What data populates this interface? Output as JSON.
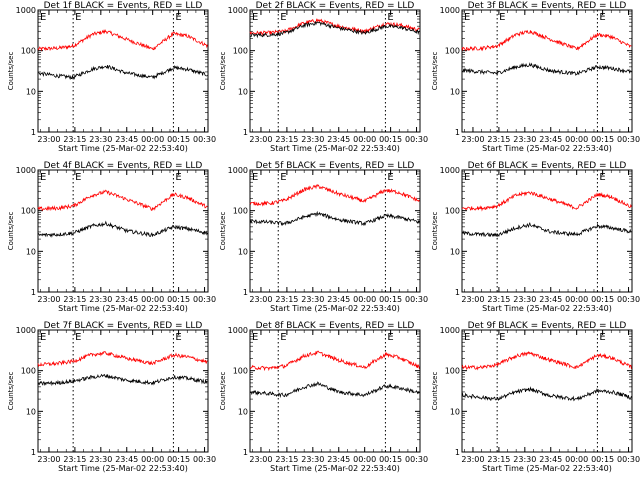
{
  "chart_data": [
    {
      "type": "line",
      "title": "Det 1f BLACK = Events, RED = LLD",
      "xlabel": "Start Time (25-Mar-02 22:53:40)",
      "ylabel": "Counts/sec",
      "yscale": "log",
      "ylim": [
        1,
        1000
      ],
      "x_ticks": [
        "23:00",
        "23:15",
        "23:30",
        "23:45",
        "00:00",
        "00:15",
        "00:30"
      ],
      "y_ticks": [
        "1",
        "10",
        "100",
        "1000"
      ],
      "xlim": [
        "22:53:40",
        "00:32:00"
      ],
      "markers": [
        "23:14",
        "00:12"
      ],
      "marker_label": "E",
      "series": [
        {
          "color": "#ff0000",
          "times": [
            "22:53:40",
            "23:05",
            "23:14",
            "23:25",
            "23:33",
            "23:45",
            "00:00",
            "00:12",
            "00:20",
            "00:32"
          ],
          "values": [
            110,
            115,
            130,
            250,
            300,
            190,
            110,
            260,
            230,
            130
          ]
        },
        {
          "color": "#000000",
          "times": [
            "22:53:40",
            "23:05",
            "23:14",
            "23:25",
            "23:33",
            "23:45",
            "00:00",
            "00:12",
            "00:20",
            "00:32"
          ],
          "values": [
            28,
            24,
            22,
            35,
            42,
            28,
            22,
            38,
            35,
            25
          ]
        }
      ]
    },
    {
      "type": "line",
      "title": "Det 2f BLACK = Events, RED = LLD",
      "xlabel": "Start Time (25-Mar-02 22:53:40)",
      "ylabel": "Counts/sec",
      "yscale": "log",
      "ylim": [
        1,
        1000
      ],
      "x_ticks": [
        "23:00",
        "23:15",
        "23:30",
        "23:45",
        "00:00",
        "00:15",
        "00:30"
      ],
      "y_ticks": [
        "1",
        "10",
        "100",
        "1000"
      ],
      "xlim": [
        "22:53:40",
        "00:32:00"
      ],
      "markers": [
        "23:10",
        "00:12"
      ],
      "marker_label": "E",
      "series": [
        {
          "color": "#ff0000",
          "times": [
            "22:53:40",
            "23:05",
            "23:14",
            "23:25",
            "23:33",
            "23:45",
            "00:00",
            "00:12",
            "00:20",
            "00:32"
          ],
          "values": [
            270,
            275,
            300,
            480,
            560,
            400,
            300,
            460,
            430,
            320
          ]
        },
        {
          "color": "#000000",
          "times": [
            "22:53:40",
            "23:05",
            "23:14",
            "23:25",
            "23:33",
            "23:45",
            "00:00",
            "00:12",
            "00:20",
            "00:32"
          ],
          "values": [
            240,
            245,
            270,
            420,
            490,
            360,
            270,
            400,
            380,
            280
          ]
        }
      ]
    },
    {
      "type": "line",
      "title": "Det 3f BLACK = Events, RED = LLD",
      "xlabel": "Start Time (25-Mar-02 22:53:40)",
      "ylabel": "Counts/sec",
      "yscale": "log",
      "ylim": [
        1,
        1000
      ],
      "x_ticks": [
        "23:00",
        "23:15",
        "23:30",
        "23:45",
        "00:00",
        "00:15",
        "00:30"
      ],
      "y_ticks": [
        "1",
        "10",
        "100",
        "1000"
      ],
      "xlim": [
        "22:53:40",
        "00:32:00"
      ],
      "markers": [
        "23:14",
        "00:12"
      ],
      "marker_label": "E",
      "series": [
        {
          "color": "#ff0000",
          "times": [
            "22:53:40",
            "23:05",
            "23:14",
            "23:25",
            "23:33",
            "23:45",
            "00:00",
            "00:12",
            "00:20",
            "00:32"
          ],
          "values": [
            110,
            115,
            130,
            250,
            300,
            190,
            110,
            250,
            220,
            120
          ]
        },
        {
          "color": "#000000",
          "times": [
            "22:53:40",
            "23:05",
            "23:14",
            "23:25",
            "23:33",
            "23:45",
            "00:00",
            "00:12",
            "00:20",
            "00:32"
          ],
          "values": [
            33,
            30,
            28,
            40,
            45,
            32,
            27,
            40,
            37,
            30
          ]
        }
      ]
    },
    {
      "type": "line",
      "title": "Det 4f BLACK = Events, RED = LLD",
      "xlabel": "Start Time (25-Mar-02 22:53:40)",
      "ylabel": "Counts/sec",
      "yscale": "log",
      "ylim": [
        1,
        1000
      ],
      "x_ticks": [
        "23:00",
        "23:15",
        "23:30",
        "23:45",
        "00:00",
        "00:15",
        "00:30"
      ],
      "y_ticks": [
        "1",
        "10",
        "100",
        "1000"
      ],
      "xlim": [
        "22:53:40",
        "00:32:00"
      ],
      "markers": [
        "23:14",
        "00:12"
      ],
      "marker_label": "E",
      "series": [
        {
          "color": "#ff0000",
          "times": [
            "22:53:40",
            "23:05",
            "23:14",
            "23:25",
            "23:33",
            "23:45",
            "00:00",
            "00:12",
            "00:20",
            "00:32"
          ],
          "values": [
            110,
            115,
            130,
            240,
            290,
            190,
            110,
            250,
            210,
            120
          ]
        },
        {
          "color": "#000000",
          "times": [
            "22:53:40",
            "23:05",
            "23:14",
            "23:25",
            "23:33",
            "23:45",
            "00:00",
            "00:12",
            "00:20",
            "00:32"
          ],
          "values": [
            25,
            26,
            28,
            42,
            48,
            32,
            25,
            40,
            36,
            28
          ]
        }
      ]
    },
    {
      "type": "line",
      "title": "Det 5f BLACK = Events, RED = LLD",
      "xlabel": "Start Time (25-Mar-02 22:53:40)",
      "ylabel": "Counts/sec",
      "yscale": "log",
      "ylim": [
        1,
        1000
      ],
      "x_ticks": [
        "23:00",
        "23:15",
        "23:30",
        "23:45",
        "00:00",
        "00:15",
        "00:30"
      ],
      "y_ticks": [
        "1",
        "10",
        "100",
        "1000"
      ],
      "xlim": [
        "22:53:40",
        "00:32:00"
      ],
      "markers": [
        "23:10",
        "00:12"
      ],
      "marker_label": "E",
      "series": [
        {
          "color": "#ff0000",
          "times": [
            "22:53:40",
            "23:05",
            "23:14",
            "23:25",
            "23:33",
            "23:45",
            "00:00",
            "00:12",
            "00:20",
            "00:32"
          ],
          "values": [
            150,
            150,
            180,
            330,
            400,
            260,
            170,
            320,
            280,
            170
          ]
        },
        {
          "color": "#000000",
          "times": [
            "22:53:40",
            "23:05",
            "23:14",
            "23:25",
            "23:33",
            "23:45",
            "00:00",
            "00:12",
            "00:20",
            "00:32"
          ],
          "values": [
            55,
            52,
            48,
            70,
            85,
            60,
            48,
            75,
            68,
            52
          ]
        }
      ]
    },
    {
      "type": "line",
      "title": "Det 6f BLACK = Events, RED = LLD",
      "xlabel": "Start Time (25-Mar-02 22:53:40)",
      "ylabel": "Counts/sec",
      "yscale": "log",
      "ylim": [
        1,
        1000
      ],
      "x_ticks": [
        "23:00",
        "23:15",
        "23:30",
        "23:45",
        "00:00",
        "00:15",
        "00:30"
      ],
      "y_ticks": [
        "1",
        "10",
        "100",
        "1000"
      ],
      "xlim": [
        "22:53:40",
        "00:32:00"
      ],
      "markers": [
        "23:14",
        "00:12"
      ],
      "marker_label": "E",
      "series": [
        {
          "color": "#ff0000",
          "times": [
            "22:53:40",
            "23:05",
            "23:14",
            "23:25",
            "23:33",
            "23:45",
            "00:00",
            "00:12",
            "00:20",
            "00:32"
          ],
          "values": [
            115,
            115,
            130,
            240,
            280,
            190,
            115,
            250,
            220,
            120
          ]
        },
        {
          "color": "#000000",
          "times": [
            "22:53:40",
            "23:05",
            "23:14",
            "23:25",
            "23:33",
            "23:45",
            "00:00",
            "00:12",
            "00:20",
            "00:32"
          ],
          "values": [
            28,
            26,
            25,
            38,
            45,
            30,
            26,
            42,
            38,
            30
          ]
        }
      ]
    },
    {
      "type": "line",
      "title": "Det 7f BLACK = Events, RED = LLD",
      "xlabel": "Start Time (25-Mar-02 22:53:40)",
      "ylabel": "Counts/sec",
      "yscale": "log",
      "ylim": [
        1,
        1000
      ],
      "x_ticks": [
        "23:00",
        "23:15",
        "23:30",
        "23:45",
        "00:00",
        "00:15",
        "00:30"
      ],
      "y_ticks": [
        "1",
        "10",
        "100",
        "1000"
      ],
      "xlim": [
        "22:53:40",
        "00:32:00"
      ],
      "markers": [
        "23:14",
        "00:12"
      ],
      "marker_label": "E",
      "series": [
        {
          "color": "#ff0000",
          "times": [
            "22:53:40",
            "23:05",
            "23:14",
            "23:25",
            "23:33",
            "23:45",
            "00:00",
            "00:12",
            "00:20",
            "00:32"
          ],
          "values": [
            140,
            150,
            170,
            250,
            270,
            200,
            150,
            240,
            220,
            160
          ]
        },
        {
          "color": "#000000",
          "times": [
            "22:53:40",
            "23:05",
            "23:14",
            "23:25",
            "23:33",
            "23:45",
            "00:00",
            "00:12",
            "00:20",
            "00:32"
          ],
          "values": [
            48,
            50,
            55,
            70,
            75,
            58,
            50,
            70,
            65,
            52
          ]
        }
      ]
    },
    {
      "type": "line",
      "title": "Det 8f BLACK = Events, RED = LLD",
      "xlabel": "Start Time (25-Mar-02 22:53:40)",
      "ylabel": "Counts/sec",
      "yscale": "log",
      "ylim": [
        1,
        1000
      ],
      "x_ticks": [
        "23:00",
        "23:15",
        "23:30",
        "23:45",
        "00:00",
        "00:15",
        "00:30"
      ],
      "y_ticks": [
        "1",
        "10",
        "100",
        "1000"
      ],
      "xlim": [
        "22:53:40",
        "00:32:00"
      ],
      "markers": [
        "23:10",
        "00:12"
      ],
      "marker_label": "E",
      "series": [
        {
          "color": "#ff0000",
          "times": [
            "22:53:40",
            "23:05",
            "23:14",
            "23:25",
            "23:33",
            "23:45",
            "00:00",
            "00:12",
            "00:20",
            "00:32"
          ],
          "values": [
            120,
            115,
            130,
            230,
            280,
            180,
            120,
            250,
            210,
            120
          ]
        },
        {
          "color": "#000000",
          "times": [
            "22:53:40",
            "23:05",
            "23:14",
            "23:25",
            "23:33",
            "23:45",
            "00:00",
            "00:12",
            "00:20",
            "00:32"
          ],
          "values": [
            30,
            27,
            25,
            40,
            48,
            30,
            25,
            42,
            38,
            28
          ]
        }
      ]
    },
    {
      "type": "line",
      "title": "Det 9f BLACK = Events, RED = LLD",
      "xlabel": "Start Time (25-Mar-02 22:53:40)",
      "ylabel": "Counts/sec",
      "yscale": "log",
      "ylim": [
        1,
        1000
      ],
      "x_ticks": [
        "23:00",
        "23:15",
        "23:30",
        "23:45",
        "00:00",
        "00:15",
        "00:30"
      ],
      "y_ticks": [
        "1",
        "10",
        "100",
        "1000"
      ],
      "xlim": [
        "22:53:40",
        "00:32:00"
      ],
      "markers": [
        "23:14",
        "00:12"
      ],
      "marker_label": "E",
      "series": [
        {
          "color": "#ff0000",
          "times": [
            "22:53:40",
            "23:05",
            "23:14",
            "23:25",
            "23:33",
            "23:45",
            "00:00",
            "00:12",
            "00:20",
            "00:32"
          ],
          "values": [
            120,
            120,
            140,
            230,
            270,
            180,
            120,
            240,
            210,
            120
          ]
        },
        {
          "color": "#000000",
          "times": [
            "22:53:40",
            "23:05",
            "23:14",
            "23:25",
            "23:33",
            "23:45",
            "00:00",
            "00:12",
            "00:20",
            "00:32"
          ],
          "values": [
            25,
            22,
            20,
            30,
            35,
            24,
            20,
            32,
            30,
            22
          ]
        }
      ]
    }
  ]
}
